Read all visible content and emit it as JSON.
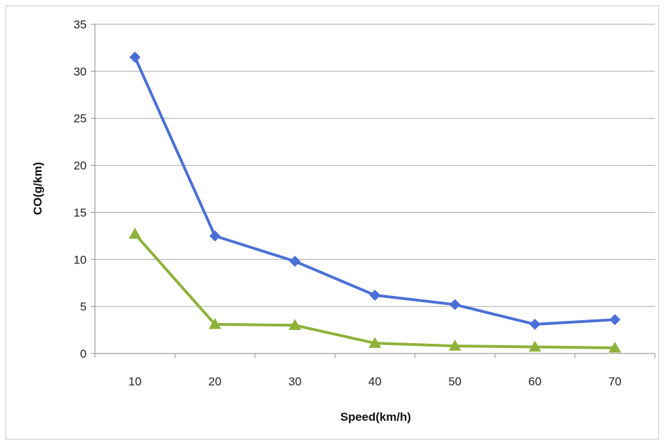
{
  "chart_data": {
    "type": "line",
    "xlabel": "Speed(km/h)",
    "ylabel": "CO(g/km)",
    "categories": [
      "10",
      "20",
      "30",
      "40",
      "50",
      "60",
      "70"
    ],
    "ylim": [
      0,
      35
    ],
    "yticks": [
      0,
      5,
      10,
      15,
      20,
      25,
      30,
      35
    ],
    "grid": true,
    "legend": "none",
    "series": [
      {
        "values": [
          31.5,
          12.5,
          9.8,
          6.2,
          5.2,
          3.1,
          3.6
        ],
        "color": "#4a6fd6",
        "marker": "diamond"
      },
      {
        "values": [
          12.7,
          3.1,
          3.0,
          1.1,
          0.8,
          0.7,
          0.6
        ],
        "color": "#8fb23a",
        "marker": "triangle"
      }
    ]
  }
}
